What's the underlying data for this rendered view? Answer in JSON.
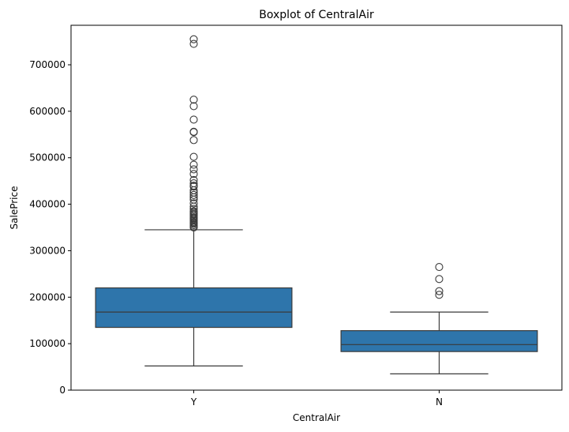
{
  "chart_data": {
    "type": "boxplot",
    "title": "Boxplot of CentralAir",
    "xlabel": "CentralAir",
    "ylabel": "SalePrice",
    "categories": [
      "Y",
      "N"
    ],
    "ylim": [
      0,
      785000
    ],
    "yticks": [
      0,
      100000,
      200000,
      300000,
      400000,
      500000,
      600000,
      700000
    ],
    "ytick_labels": [
      "0",
      "100000",
      "200000",
      "300000",
      "400000",
      "500000",
      "600000",
      "700000"
    ],
    "grid": false,
    "box_color": "#2e75ab",
    "line_color": "#3a3a3a",
    "boxes": [
      {
        "category": "Y",
        "whisker_low": 52000,
        "q1": 135000,
        "median": 168000,
        "q3": 220000,
        "whisker_high": 345000,
        "outliers": [
          350000,
          352000,
          355000,
          358000,
          360000,
          362000,
          365000,
          368000,
          370000,
          372000,
          375000,
          378000,
          380000,
          383000,
          385000,
          390000,
          395000,
          402000,
          410000,
          415000,
          420000,
          425000,
          430000,
          438000,
          440000,
          445000,
          452000,
          465000,
          475000,
          485000,
          502000,
          538000,
          555000,
          556000,
          582000,
          611000,
          625000,
          745000,
          755000
        ]
      },
      {
        "category": "N",
        "whisker_low": 35000,
        "q1": 83000,
        "median": 98000,
        "q3": 128000,
        "whisker_high": 168000,
        "outliers": [
          205000,
          213000,
          239000,
          265000
        ]
      }
    ]
  }
}
